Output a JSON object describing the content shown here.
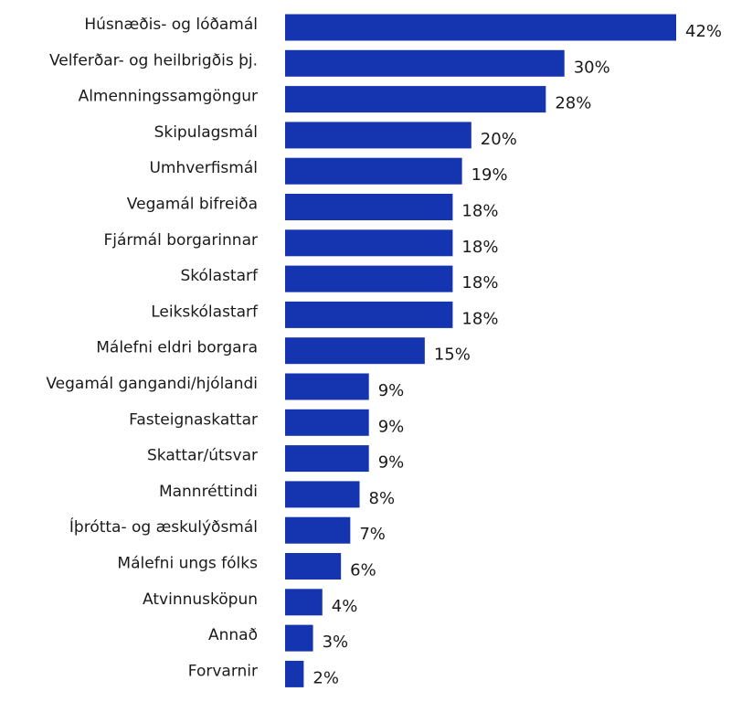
{
  "chart_data": {
    "type": "bar",
    "orientation": "horizontal",
    "categories": [
      "Húsnæðis- og lóðamál",
      "Velferðar- og heilbrigðis þj.",
      "Almenningssamgöngur",
      "Skipulagsmál",
      "Umhverfismál",
      "Vegamál bifreiða",
      "Fjármál borgarinnar",
      "Skólastarf",
      "Leikskólastarf",
      "Málefni eldri borgara",
      "Vegamál gangandi/hjólandi",
      "Fasteignaskattar",
      "Skattar/útsvar",
      "Mannréttindi",
      "Íþrótta- og æskulýðsmál",
      "Málefni ungs fólks",
      "Atvinnusköpun",
      "Annað",
      "Forvarnir"
    ],
    "values": [
      42,
      30,
      28,
      20,
      19,
      18,
      18,
      18,
      18,
      15,
      9,
      9,
      9,
      8,
      7,
      6,
      4,
      3,
      2
    ],
    "value_labels": [
      "42%",
      "30%",
      "28%",
      "20%",
      "19%",
      "18%",
      "18%",
      "18%",
      "18%",
      "15%",
      "9%",
      "9%",
      "9%",
      "8%",
      "7%",
      "6%",
      "4%",
      "3%",
      "2%"
    ],
    "color": "#1434b0"
  }
}
